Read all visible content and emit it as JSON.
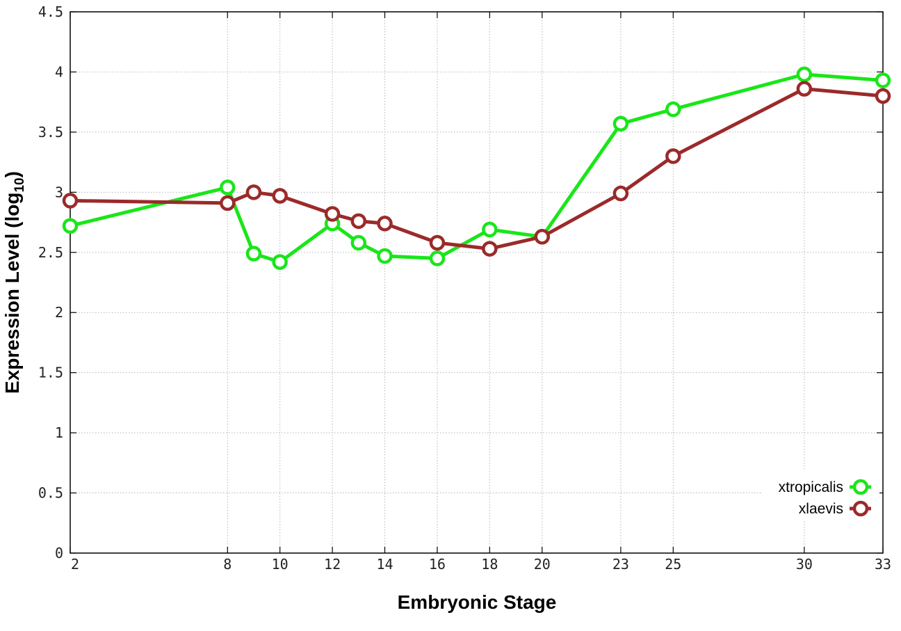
{
  "chart_data": {
    "type": "line",
    "xlabel": "Embryonic Stage",
    "ylabel_main": "Expression Level (log",
    "ylabel_sub": "10",
    "ylabel_close": ")",
    "xlim": [
      2,
      33
    ],
    "ylim": [
      0,
      4.5
    ],
    "x_ticks": [
      2,
      8,
      10,
      12,
      14,
      16,
      18,
      20,
      23,
      25,
      30,
      33
    ],
    "y_ticks": [
      0,
      0.5,
      1,
      1.5,
      2,
      2.5,
      3,
      3.5,
      4,
      4.5
    ],
    "y_tick_labels": [
      "0",
      "0.5",
      "1",
      "1.5",
      "2",
      "2.5",
      "3",
      "3.5",
      "4",
      "4.5"
    ],
    "grid": true,
    "legend_position": "bottom-right",
    "series": [
      {
        "name": "xtropicalis",
        "color": "#19e619",
        "x": [
          2,
          8,
          9,
          10,
          12,
          13,
          14,
          16,
          18,
          20,
          23,
          25,
          30,
          33
        ],
        "y": [
          2.72,
          3.04,
          2.49,
          2.42,
          2.74,
          2.58,
          2.47,
          2.45,
          2.69,
          2.63,
          3.57,
          3.69,
          3.98,
          3.93
        ]
      },
      {
        "name": "xlaevis",
        "color": "#9b2a2a",
        "x": [
          2,
          8,
          9,
          10,
          12,
          13,
          14,
          16,
          18,
          20,
          23,
          25,
          30,
          33
        ],
        "y": [
          2.93,
          2.91,
          3.0,
          2.97,
          2.82,
          2.76,
          2.74,
          2.58,
          2.53,
          2.63,
          2.99,
          3.3,
          3.86,
          3.8
        ]
      }
    ]
  }
}
